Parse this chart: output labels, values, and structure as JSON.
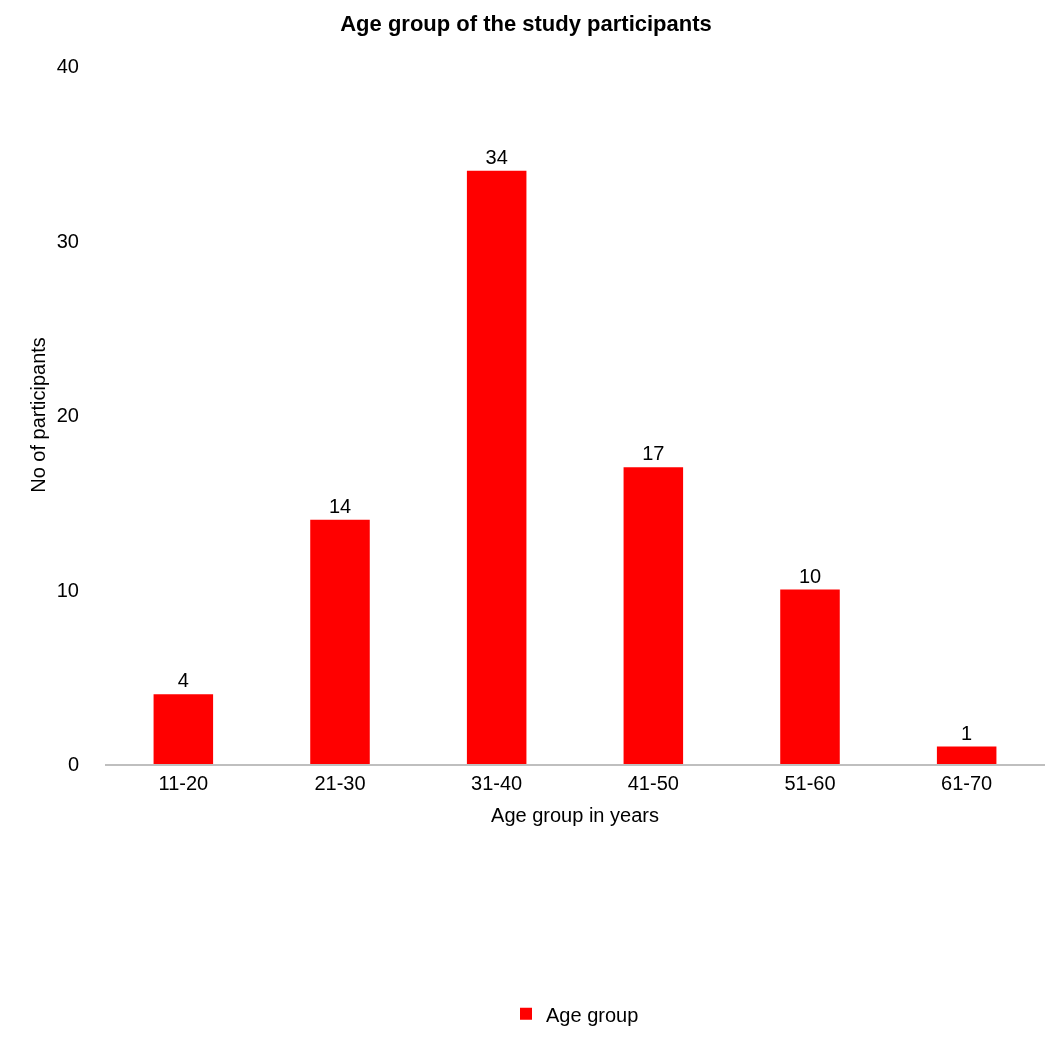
{
  "chart_data": {
    "type": "bar",
    "title": "Age group of the study participants",
    "xlabel": "Age group in years",
    "ylabel": "No of participants",
    "categories": [
      "11-20",
      "21-30",
      "31-40",
      "41-50",
      "51-60",
      "61-70"
    ],
    "series": [
      {
        "name": "Age group",
        "color": "#ff0000",
        "values": [
          4,
          14,
          34,
          17,
          10,
          1
        ]
      }
    ],
    "ylim": [
      0,
      40
    ],
    "yticks": [
      0,
      10,
      20,
      30,
      40
    ],
    "data_labels": true,
    "legend": "bottom",
    "grid": false
  }
}
